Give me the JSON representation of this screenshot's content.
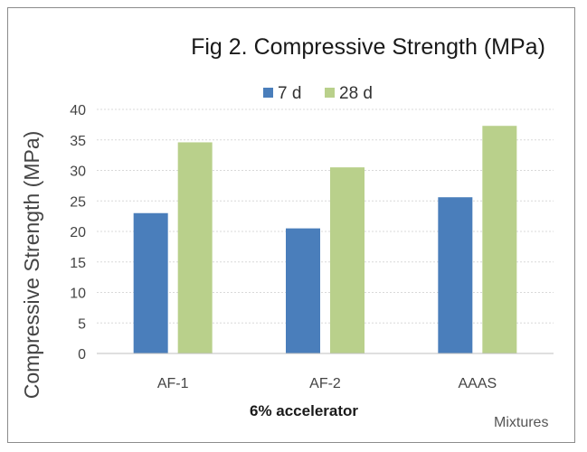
{
  "chart_data": {
    "type": "bar",
    "title": "Fig 2. Compressive Strength (MPa)",
    "categories": [
      "AF-1",
      "AF-2",
      "AAAS"
    ],
    "series": [
      {
        "name": "7 d",
        "values": [
          23.0,
          20.5,
          25.6
        ],
        "color": "#4a7ebb"
      },
      {
        "name": "28 d",
        "values": [
          34.6,
          30.5,
          37.3
        ],
        "color": "#b9d08b"
      }
    ],
    "ylabel": "Compressive Strength (MPa)",
    "xlabel": "6% accelerator",
    "annotation": "Mixtures",
    "ylim": [
      0,
      40
    ],
    "yticks": [
      0,
      5,
      10,
      15,
      20,
      25,
      30,
      35,
      40
    ],
    "grid": true,
    "legend_position": "top-center"
  }
}
